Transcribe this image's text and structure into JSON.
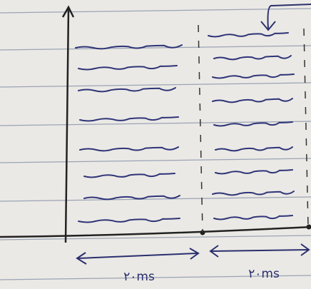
{
  "timeline": {
    "segments": [
      "٢٠ms",
      "٢٠ms"
    ]
  }
}
